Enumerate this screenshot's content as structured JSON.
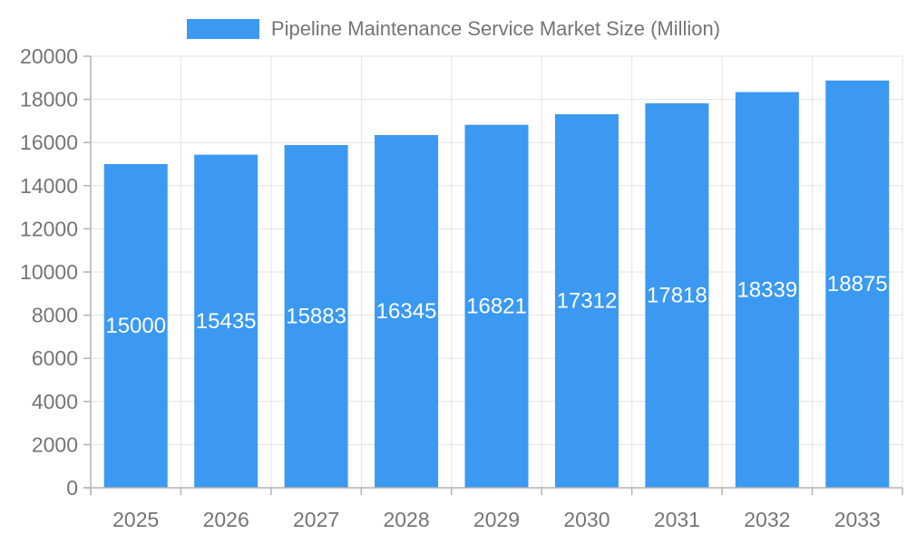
{
  "chart_data": {
    "type": "bar",
    "title": "Pipeline Maintenance Service Market Size (Million)",
    "categories": [
      "2025",
      "2026",
      "2027",
      "2028",
      "2029",
      "2030",
      "2031",
      "2032",
      "2033"
    ],
    "values": [
      15000,
      15435,
      15883,
      16345,
      16821,
      17312,
      17818,
      18339,
      18875
    ],
    "series": [
      {
        "name": "Pipeline Maintenance Service Market Size (Million)",
        "values": [
          15000,
          15435,
          15883,
          16345,
          16821,
          17312,
          17818,
          18339,
          18875
        ]
      }
    ],
    "xlabel": "",
    "ylabel": "",
    "ylim": [
      0,
      20000
    ],
    "ytick_step": 2000,
    "ytick_labels": [
      "0",
      "2000",
      "4000",
      "6000",
      "8000",
      "10000",
      "12000",
      "14000",
      "16000",
      "18000",
      "20000"
    ],
    "grid": true,
    "legend_position": "top",
    "bar_value_labels_position": "inside-middle",
    "colors": {
      "bar": "#3b99f1",
      "text": "#757575",
      "grid": "#e3e3e3",
      "axis": "#b3b3b3",
      "bar_label_text": "#ffffff",
      "background": "#ffffff"
    }
  }
}
